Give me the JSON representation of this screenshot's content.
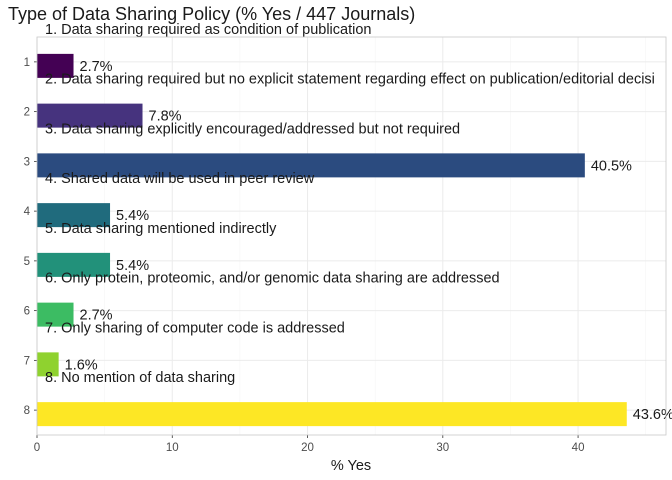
{
  "chart_data": {
    "type": "bar",
    "orientation": "horizontal",
    "title": "Type of Data Sharing Policy (% Yes / 447 Journals)",
    "xlabel": "% Yes",
    "ylabel": "",
    "xlim": [
      0,
      46.5
    ],
    "x_ticks": [
      "0",
      "10",
      "20",
      "30",
      "40"
    ],
    "y_ticks": [
      "1",
      "2",
      "3",
      "4",
      "5",
      "6",
      "7",
      "8"
    ],
    "grid": true,
    "legend": "none",
    "bars": [
      {
        "position": 1,
        "category": "1. Data sharing required as condition of publication",
        "value": 2.7,
        "label": "2.7%",
        "color": "#440154"
      },
      {
        "position": 2,
        "category": "2. Data sharing required but no explicit statement regarding effect on publication/editorial decisi",
        "value": 7.8,
        "label": "7.8%",
        "color": "#46337E"
      },
      {
        "position": 3,
        "category": "3. Data sharing explicitly encouraged/addressed but not required",
        "value": 40.5,
        "label": "40.5%",
        "color": "#2B4B7F"
      },
      {
        "position": 4,
        "category": "4. Shared data will be used in peer review",
        "value": 5.4,
        "label": "5.4%",
        "color": "#206B7D"
      },
      {
        "position": 5,
        "category": "5. Data sharing mentioned indirectly",
        "value": 5.4,
        "label": "5.4%",
        "color": "#22917A"
      },
      {
        "position": 6,
        "category": "6. Only protein, proteomic, and/or genomic data sharing are addressed",
        "value": 2.7,
        "label": "2.7%",
        "color": "#3CBC63"
      },
      {
        "position": 7,
        "category": "7. Only sharing of computer code is addressed",
        "value": 1.6,
        "label": "1.6%",
        "color": "#8FD22F"
      },
      {
        "position": 8,
        "category": "8. No mention of data sharing",
        "value": 43.6,
        "label": "43.6%",
        "color": "#FDE725"
      }
    ]
  }
}
